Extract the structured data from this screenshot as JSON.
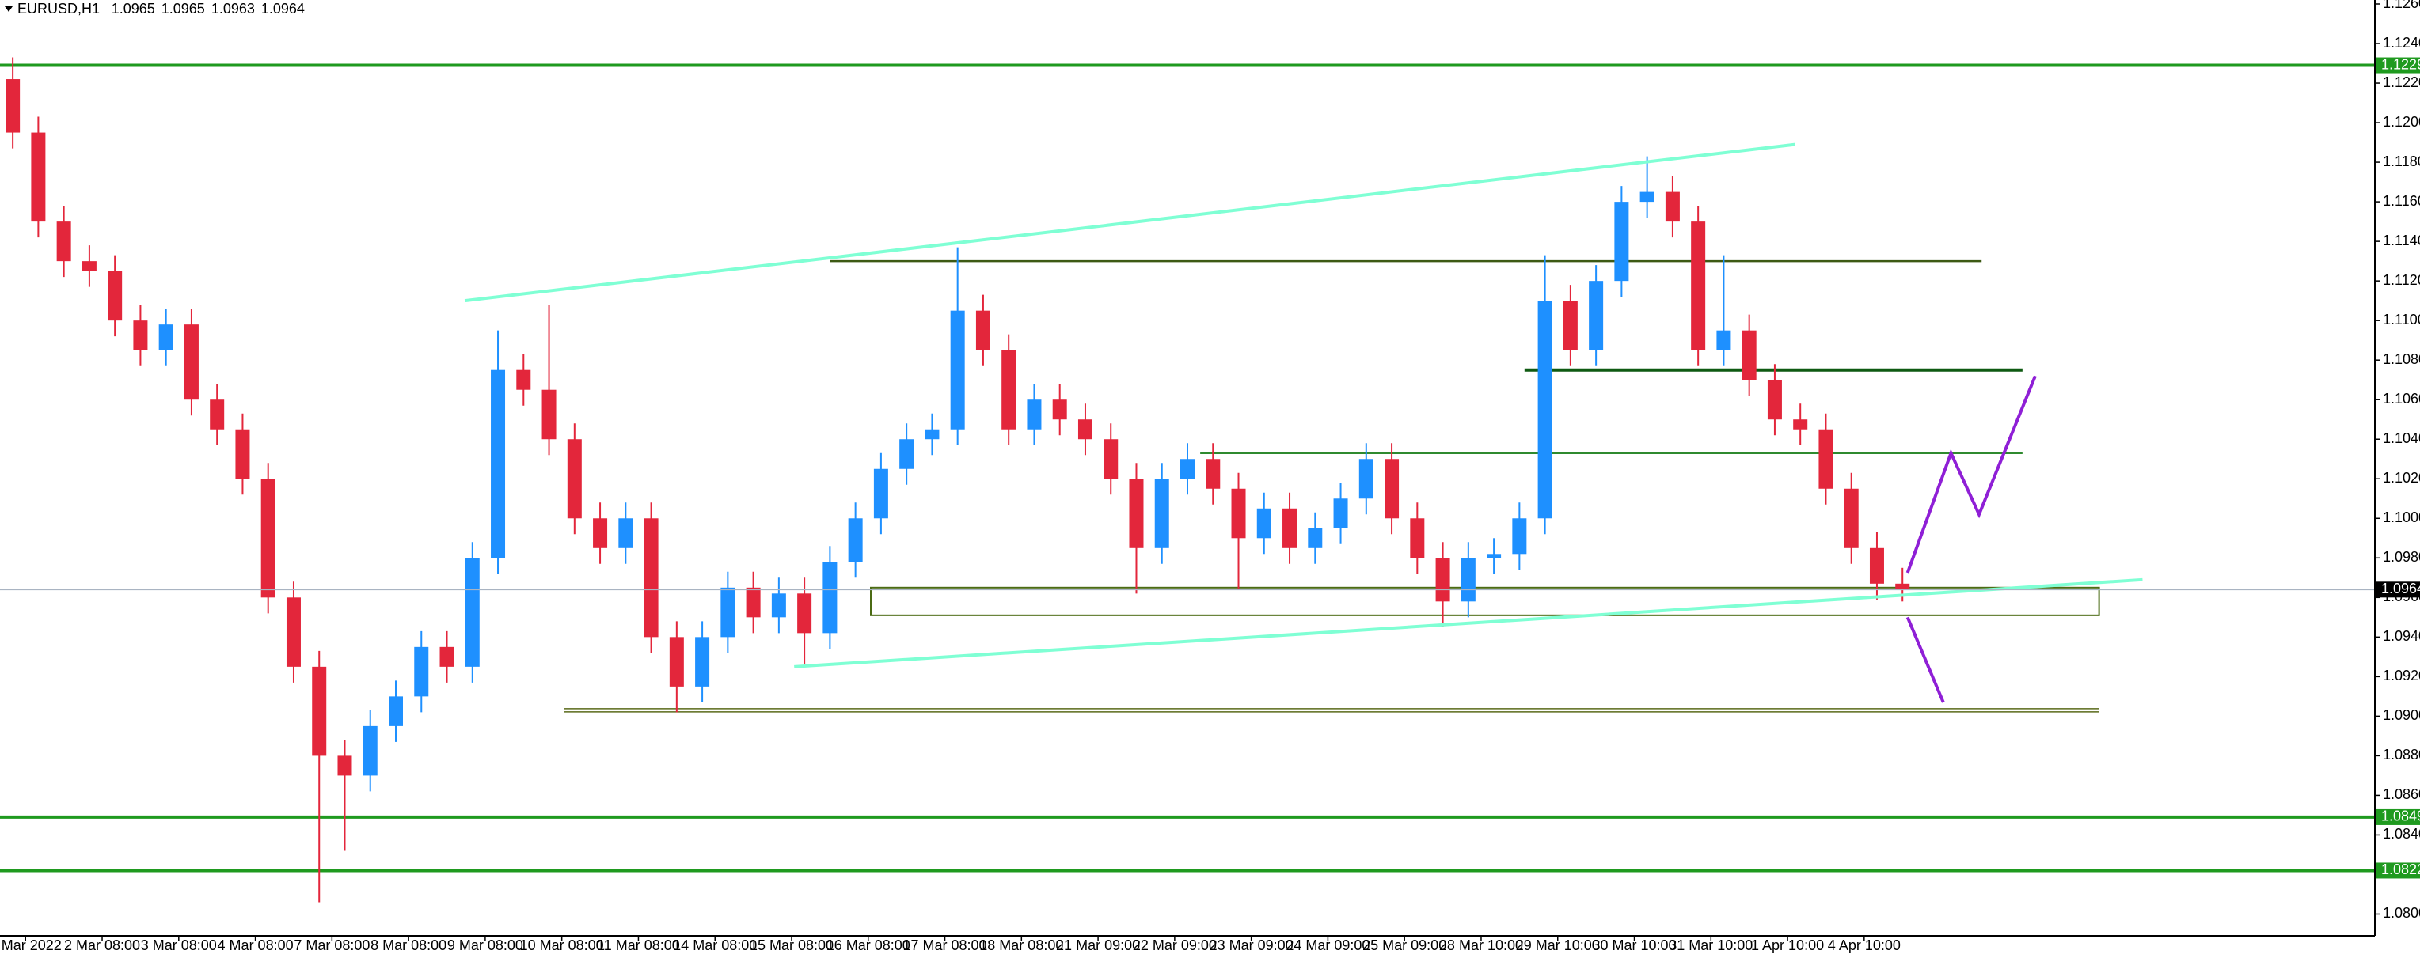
{
  "chart_data": {
    "type": "candlestick",
    "symbol": "EURUSD,H1",
    "header_values": [
      1.0965,
      1.0965,
      1.0963,
      1.0964
    ],
    "up_color": "#1e90ff",
    "down_color": "#e3263b",
    "x": [
      0,
      1,
      2,
      3,
      4,
      5,
      6,
      7,
      8,
      9,
      10,
      11,
      12,
      13,
      14,
      15,
      16,
      17,
      18,
      19,
      20,
      21,
      22,
      23,
      24,
      25,
      26,
      27,
      28,
      29,
      30,
      31,
      32,
      33,
      34,
      35,
      36,
      37,
      38,
      39,
      40,
      41,
      42,
      43,
      44,
      45,
      46,
      47,
      48,
      49,
      50,
      51,
      52,
      53,
      54,
      55,
      56,
      57,
      58,
      59,
      60,
      61,
      62,
      63,
      64,
      65,
      66,
      67,
      68,
      69,
      70,
      71,
      72,
      73,
      74
    ],
    "open": [
      1.1222,
      1.1195,
      1.115,
      1.113,
      1.1125,
      1.11,
      1.1085,
      1.1098,
      1.106,
      1.1045,
      1.102,
      1.096,
      1.0925,
      1.088,
      1.087,
      1.0895,
      1.091,
      1.0935,
      1.0925,
      1.098,
      1.1075,
      1.1065,
      1.104,
      1.1,
      1.0985,
      1.1,
      1.094,
      1.0915,
      1.094,
      1.0965,
      1.095,
      1.0962,
      1.0942,
      1.0978,
      1.1,
      1.1025,
      1.104,
      1.1045,
      1.1105,
      1.1085,
      1.1045,
      1.106,
      1.105,
      1.104,
      1.102,
      1.0985,
      1.102,
      1.103,
      1.1015,
      1.099,
      1.1005,
      1.0985,
      1.0995,
      1.101,
      1.103,
      1.1,
      1.098,
      1.0958,
      1.098,
      1.0982,
      1.1,
      1.111,
      1.1085,
      1.112,
      1.116,
      1.1165,
      1.115,
      1.1085,
      1.1095,
      1.107,
      1.105,
      1.1045,
      1.1015,
      1.0985,
      1.0967
    ],
    "high": [
      1.1233,
      1.1203,
      1.1158,
      1.1138,
      1.1133,
      1.1108,
      1.1106,
      1.1106,
      1.1068,
      1.1053,
      1.1028,
      1.0968,
      1.0933,
      1.0888,
      1.0903,
      1.0918,
      1.0943,
      1.0943,
      1.0988,
      1.1095,
      1.1083,
      1.1108,
      1.1048,
      1.1008,
      1.1008,
      1.1008,
      1.0948,
      1.0948,
      1.0973,
      1.0973,
      1.097,
      1.097,
      1.0986,
      1.1008,
      1.1033,
      1.1048,
      1.1053,
      1.1137,
      1.1113,
      1.1093,
      1.1068,
      1.1068,
      1.1058,
      1.1048,
      1.1028,
      1.1028,
      1.1038,
      1.1038,
      1.1023,
      1.1013,
      1.1013,
      1.1003,
      1.1018,
      1.1038,
      1.1038,
      1.1008,
      1.0988,
      1.0988,
      1.099,
      1.1008,
      1.1133,
      1.1118,
      1.1128,
      1.1168,
      1.1183,
      1.1173,
      1.1158,
      1.1133,
      1.1103,
      1.1078,
      1.1058,
      1.1053,
      1.1023,
      1.0993,
      1.0975
    ],
    "low": [
      1.1187,
      1.1142,
      1.1122,
      1.1117,
      1.1092,
      1.1077,
      1.1077,
      1.1052,
      1.1037,
      1.1012,
      1.0952,
      1.0917,
      1.0806,
      1.0832,
      1.0862,
      1.0887,
      1.0902,
      1.0917,
      1.0917,
      1.0972,
      1.1057,
      1.1032,
      1.0992,
      1.0977,
      1.0977,
      1.0932,
      1.0902,
      1.0907,
      1.0932,
      1.0942,
      1.0942,
      1.0926,
      1.0934,
      1.097,
      1.0992,
      1.1017,
      1.1032,
      1.1037,
      1.1077,
      1.1037,
      1.1037,
      1.1042,
      1.1032,
      1.1012,
      1.0962,
      1.0977,
      1.1012,
      1.1007,
      1.0964,
      1.0982,
      1.0977,
      1.0977,
      1.0987,
      1.1002,
      1.0992,
      1.0972,
      1.0945,
      1.095,
      1.0972,
      1.0974,
      1.0992,
      1.1077,
      1.1077,
      1.1112,
      1.1152,
      1.1142,
      1.1077,
      1.1077,
      1.1062,
      1.1042,
      1.1037,
      1.1007,
      1.0977,
      1.0959,
      1.0958
    ],
    "close": [
      1.1195,
      1.115,
      1.113,
      1.1125,
      1.11,
      1.1085,
      1.1098,
      1.106,
      1.1045,
      1.102,
      1.096,
      1.0925,
      1.088,
      1.087,
      1.0895,
      1.091,
      1.0935,
      1.0925,
      1.098,
      1.1075,
      1.1065,
      1.104,
      1.1,
      1.0985,
      1.1,
      1.094,
      1.0915,
      1.094,
      1.0965,
      1.095,
      1.0962,
      1.0942,
      1.0978,
      1.1,
      1.1025,
      1.104,
      1.1045,
      1.1105,
      1.1085,
      1.1045,
      1.106,
      1.105,
      1.104,
      1.102,
      1.0985,
      1.102,
      1.103,
      1.1015,
      1.099,
      1.1005,
      1.0985,
      1.0995,
      1.101,
      1.103,
      1.1,
      1.098,
      1.0958,
      1.098,
      1.0982,
      1.1,
      1.111,
      1.1085,
      1.112,
      1.116,
      1.1165,
      1.115,
      1.1085,
      1.1095,
      1.107,
      1.105,
      1.1045,
      1.1015,
      1.0985,
      1.0967,
      1.0964
    ],
    "xlim": [
      -0.5,
      92.5
    ],
    "xticks": [
      {
        "value": 0.5,
        "label": "1 Mar 2022"
      },
      {
        "value": 3.5,
        "label": "2 Mar 08:00"
      },
      {
        "value": 6.5,
        "label": "3 Mar 08:00"
      },
      {
        "value": 9.5,
        "label": "4 Mar 08:00"
      },
      {
        "value": 12.5,
        "label": "7 Mar 08:00"
      },
      {
        "value": 15.5,
        "label": "8 Mar 08:00"
      },
      {
        "value": 18.5,
        "label": "9 Mar 08:00"
      },
      {
        "value": 21.5,
        "label": "10 Mar 08:00"
      },
      {
        "value": 24.5,
        "label": "11 Mar 08:00"
      },
      {
        "value": 27.5,
        "label": "14 Mar 08:00"
      },
      {
        "value": 30.5,
        "label": "15 Mar 08:00"
      },
      {
        "value": 33.5,
        "label": "16 Mar 08:00"
      },
      {
        "value": 36.5,
        "label": "17 Mar 08:00"
      },
      {
        "value": 39.5,
        "label": "18 Mar 08:00"
      },
      {
        "value": 42.5,
        "label": "21 Mar 09:00"
      },
      {
        "value": 45.5,
        "label": "22 Mar 09:00"
      },
      {
        "value": 48.5,
        "label": "23 Mar 09:00"
      },
      {
        "value": 51.5,
        "label": "24 Mar 09:00"
      },
      {
        "value": 54.5,
        "label": "25 Mar 09:00"
      },
      {
        "value": 57.5,
        "label": "28 Mar 10:00"
      },
      {
        "value": 60.5,
        "label": "29 Mar 10:00"
      },
      {
        "value": 63.5,
        "label": "30 Mar 10:00"
      },
      {
        "value": 66.5,
        "label": "31 Mar 10:00"
      },
      {
        "value": 69.5,
        "label": "1 Apr 10:00"
      },
      {
        "value": 72.5,
        "label": "4 Apr 10:00"
      }
    ],
    "ylim": [
      1.0789,
      1.1262
    ],
    "yticks": [
      {
        "value": 1.126,
        "label": "1.1260"
      },
      {
        "value": 1.124,
        "label": "1.1240"
      },
      {
        "value": 1.122,
        "label": "1.1220"
      },
      {
        "value": 1.12,
        "label": "1.1200"
      },
      {
        "value": 1.118,
        "label": "1.1180"
      },
      {
        "value": 1.116,
        "label": "1.1160"
      },
      {
        "value": 1.114,
        "label": "1.1140"
      },
      {
        "value": 1.112,
        "label": "1.1120"
      },
      {
        "value": 1.11,
        "label": "1.1100"
      },
      {
        "value": 1.108,
        "label": "1.1080"
      },
      {
        "value": 1.106,
        "label": "1.1060"
      },
      {
        "value": 1.104,
        "label": "1.1040"
      },
      {
        "value": 1.102,
        "label": "1.1020"
      },
      {
        "value": 1.1,
        "label": "1.1000"
      },
      {
        "value": 1.098,
        "label": "1.0980"
      },
      {
        "value": 1.096,
        "label": "1.0960"
      },
      {
        "value": 1.094,
        "label": "1.0940"
      },
      {
        "value": 1.092,
        "label": "1.0920"
      },
      {
        "value": 1.09,
        "label": "1.0900"
      },
      {
        "value": 1.088,
        "label": "1.0880"
      },
      {
        "value": 1.086,
        "label": "1.0860"
      },
      {
        "value": 1.084,
        "label": "1.0840"
      },
      {
        "value": 1.082,
        "label": "1.0820"
      },
      {
        "value": 1.08,
        "label": "1.0800"
      }
    ],
    "levels": [
      {
        "value": 1.1229,
        "color": "#1f9a1f"
      },
      {
        "value": 1.0849,
        "color": "#1f9a1f"
      },
      {
        "value": 1.0822,
        "color": "#1f9a1f"
      }
    ],
    "current_price": {
      "value": 1.0964,
      "color": "#a9b4c2"
    },
    "segments": [
      {
        "value": 1.113,
        "x": [
          32.0,
          77.1
        ],
        "color": "#3d5a14",
        "style": "thin"
      },
      {
        "value": 1.1075,
        "x": [
          59.2,
          78.7
        ],
        "color": "#0f5a12",
        "style": "thick"
      },
      {
        "value": 1.1033,
        "x": [
          46.5,
          78.7
        ],
        "color": "#2f8a2f",
        "style": "thin"
      },
      {
        "value": 1.0903,
        "x": [
          21.6,
          81.7
        ],
        "color": "#5a6a1a",
        "style": "double"
      }
    ],
    "zone": {
      "x": [
        33.6,
        81.7
      ],
      "y": [
        1.0951,
        1.0965
      ],
      "color": "#4b6b14"
    },
    "trendlines": [
      {
        "x": [
          17.7,
          69.8
        ],
        "y": [
          1.111,
          1.1189
        ],
        "color": "#7fffd4"
      },
      {
        "x": [
          30.6,
          83.4
        ],
        "y": [
          1.0925,
          1.0969
        ],
        "color": "#7fffd4"
      },
      {
        "x": [
          74.2,
          75.9,
          77.0,
          79.2
        ],
        "y": [
          1.09725,
          1.1033,
          1.1002,
          1.1072
        ],
        "color": "#8f1fd6"
      },
      {
        "x": [
          74.2,
          75.6
        ],
        "y": [
          1.095,
          1.0907
        ],
        "color": "#8f1fd6"
      }
    ]
  }
}
